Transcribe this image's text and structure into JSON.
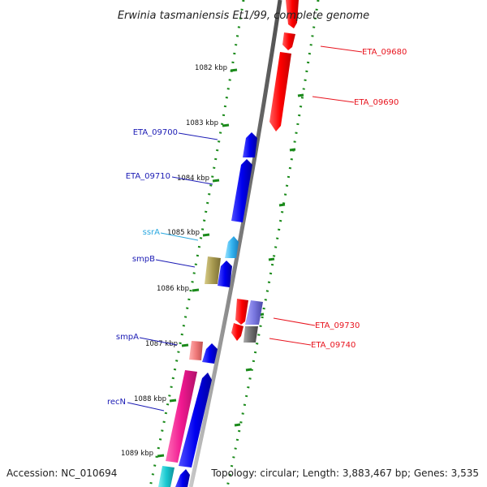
{
  "title": "Erwinia tasmaniensis Et1/99, complete genome",
  "footer": {
    "accession": "Accession: NC_010694",
    "summary": "Topology: circular; Length: 3,883,467 bp; Genes: 3,535"
  },
  "scale_labels": [
    "1082 kbp",
    "1083 kbp",
    "1084 kbp",
    "1085 kbp",
    "1086 kbp",
    "1087 kbp",
    "1088 kbp",
    "1089 kbp"
  ],
  "gene_labels": [
    {
      "text": "ETA_09680",
      "color": "#e8141e"
    },
    {
      "text": "ETA_09690",
      "color": "#e8141e"
    },
    {
      "text": "ETA_09700",
      "color": "#1a1ab4"
    },
    {
      "text": "ETA_09710",
      "color": "#1a1ab4"
    },
    {
      "text": "ssrA",
      "color": "#2aa8e0"
    },
    {
      "text": "smpB",
      "color": "#1a1ab4"
    },
    {
      "text": "smpA",
      "color": "#1a1ab4"
    },
    {
      "text": "recN",
      "color": "#1a1ab4"
    },
    {
      "text": "ETA_09730",
      "color": "#e8141e"
    },
    {
      "text": "ETA_09740",
      "color": "#e8141e"
    }
  ],
  "colors": {
    "backbone": "#8a8a8a",
    "tick": "#1a8a1a",
    "forward_gene": "#ff1010",
    "reverse_gene": "#1010e6",
    "rna": "#35b5f0",
    "pink": "#e8308a",
    "salmon": "#f08080",
    "olive": "#a89a50",
    "cyan": "#18c8d0",
    "purple": "#7a78e0"
  }
}
